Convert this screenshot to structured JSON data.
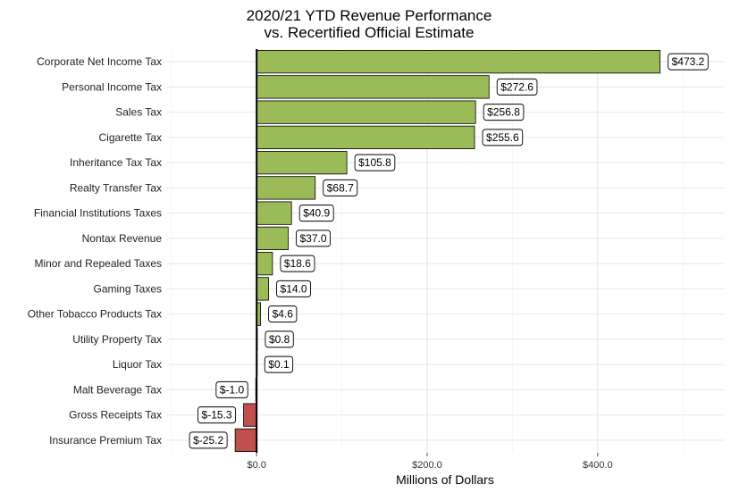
{
  "chart_data": {
    "type": "bar",
    "orientation": "horizontal",
    "title": "2020/21 YTD Revenue Performance",
    "subtitle": "vs. Recertified Official Estimate",
    "xlabel": "Millions of Dollars",
    "ylabel": "",
    "xlim": [
      -105,
      548
    ],
    "x_ticks": [
      0,
      200,
      400
    ],
    "x_tick_labels": [
      "$0.0",
      "$200.0",
      "$400.0"
    ],
    "grid": true,
    "legend": "none",
    "positive_color": "#9bbb59",
    "negative_color": "#c0504d",
    "categories": [
      "Corporate Net Income Tax",
      "Personal Income Tax",
      "Sales Tax",
      "Cigarette Tax",
      "Inheritance Tax Tax",
      "Realty Transfer Tax",
      "Financial Institutions Taxes",
      "Nontax Revenue",
      "Minor and Repealed Taxes",
      "Gaming Taxes",
      "Other Tobacco Products Tax",
      "Utility Property Tax",
      "Liquor Tax",
      "Malt Beverage Tax",
      "Gross Receipts Tax",
      "Insurance Premium Tax"
    ],
    "values": [
      473.2,
      272.6,
      256.8,
      255.6,
      105.8,
      68.7,
      40.9,
      37.0,
      18.6,
      14.0,
      4.6,
      0.8,
      0.1,
      -1.0,
      -15.3,
      -25.2
    ],
    "value_labels": [
      "$473.2",
      "$272.6",
      "$256.8",
      "$255.6",
      "$105.8",
      "$68.7",
      "$40.9",
      "$37.0",
      "$18.6",
      "$14.0",
      "$4.6",
      "$0.8",
      "$0.1",
      "$-1.0",
      "$-15.3",
      "$-25.2"
    ]
  }
}
